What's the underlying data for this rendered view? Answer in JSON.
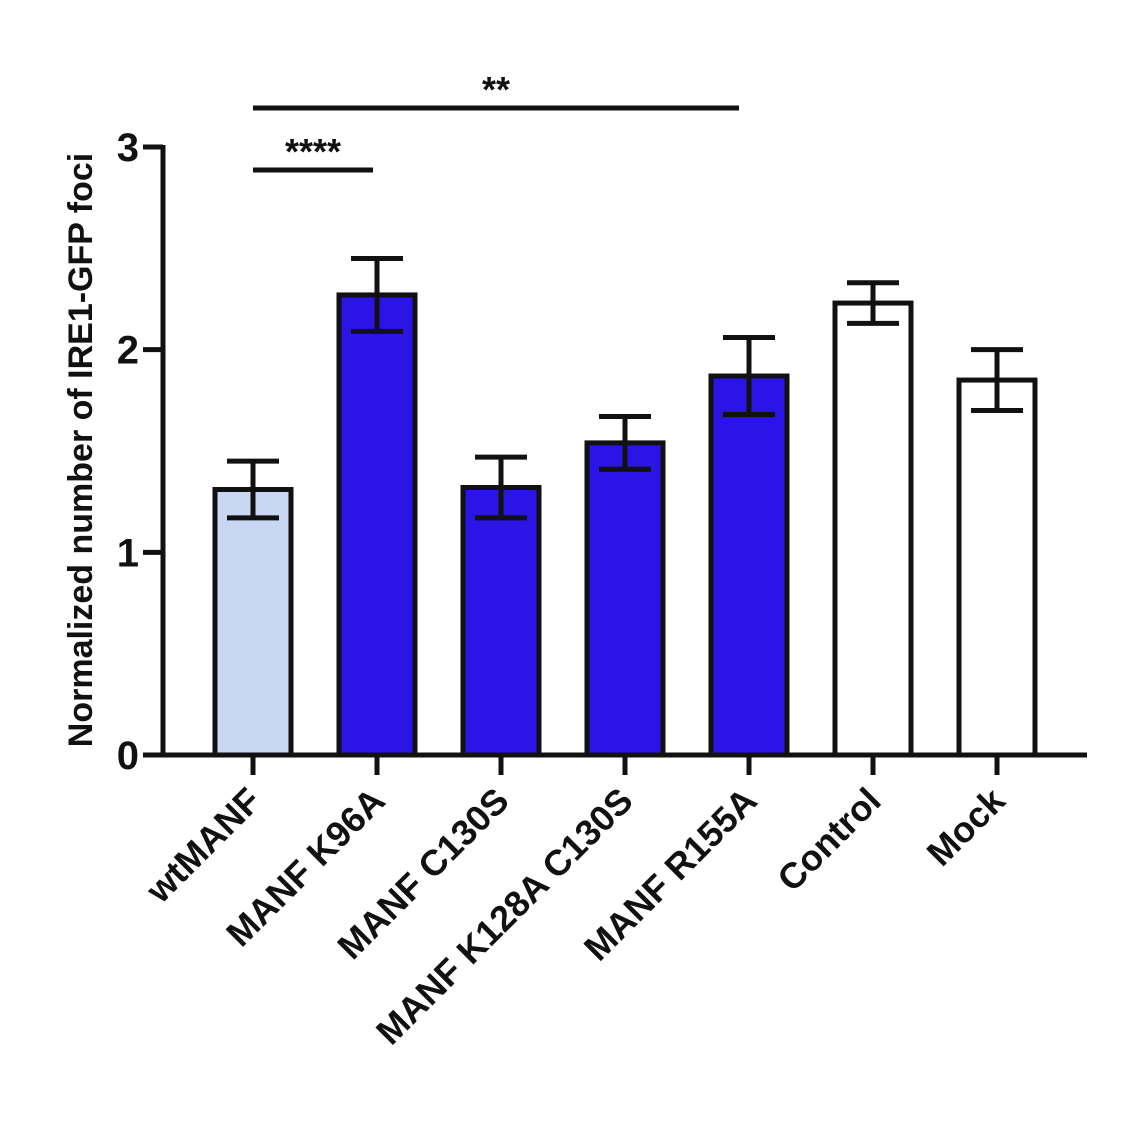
{
  "chart_data": {
    "type": "bar",
    "ylabel": "Normalized number of IRE1-GFP foci",
    "xlabel": "",
    "ylim": [
      0,
      3
    ],
    "yticks": [
      0,
      1,
      2,
      3
    ],
    "ytick_labels": [
      "0",
      "1",
      "2",
      "3"
    ],
    "categories": [
      "wtMANF",
      "MANF K96A",
      "MANF C130S",
      "MANF K128A C130S",
      "MANF R155A",
      "Control",
      "Mock"
    ],
    "values": [
      1.31,
      2.27,
      1.32,
      1.54,
      1.87,
      2.23,
      1.85
    ],
    "errors": [
      0.14,
      0.18,
      0.15,
      0.13,
      0.19,
      0.1,
      0.15
    ],
    "bar_colors": [
      "#c9d8f2",
      "#2b14e6",
      "#2b14e6",
      "#2b14e6",
      "#2b14e6",
      "#ffffff",
      "#ffffff"
    ],
    "significance": [
      {
        "from": "wtMANF",
        "to": "MANF K96A",
        "label": "****"
      },
      {
        "from": "wtMANF",
        "to": "MANF R155A",
        "label": "**"
      }
    ]
  }
}
